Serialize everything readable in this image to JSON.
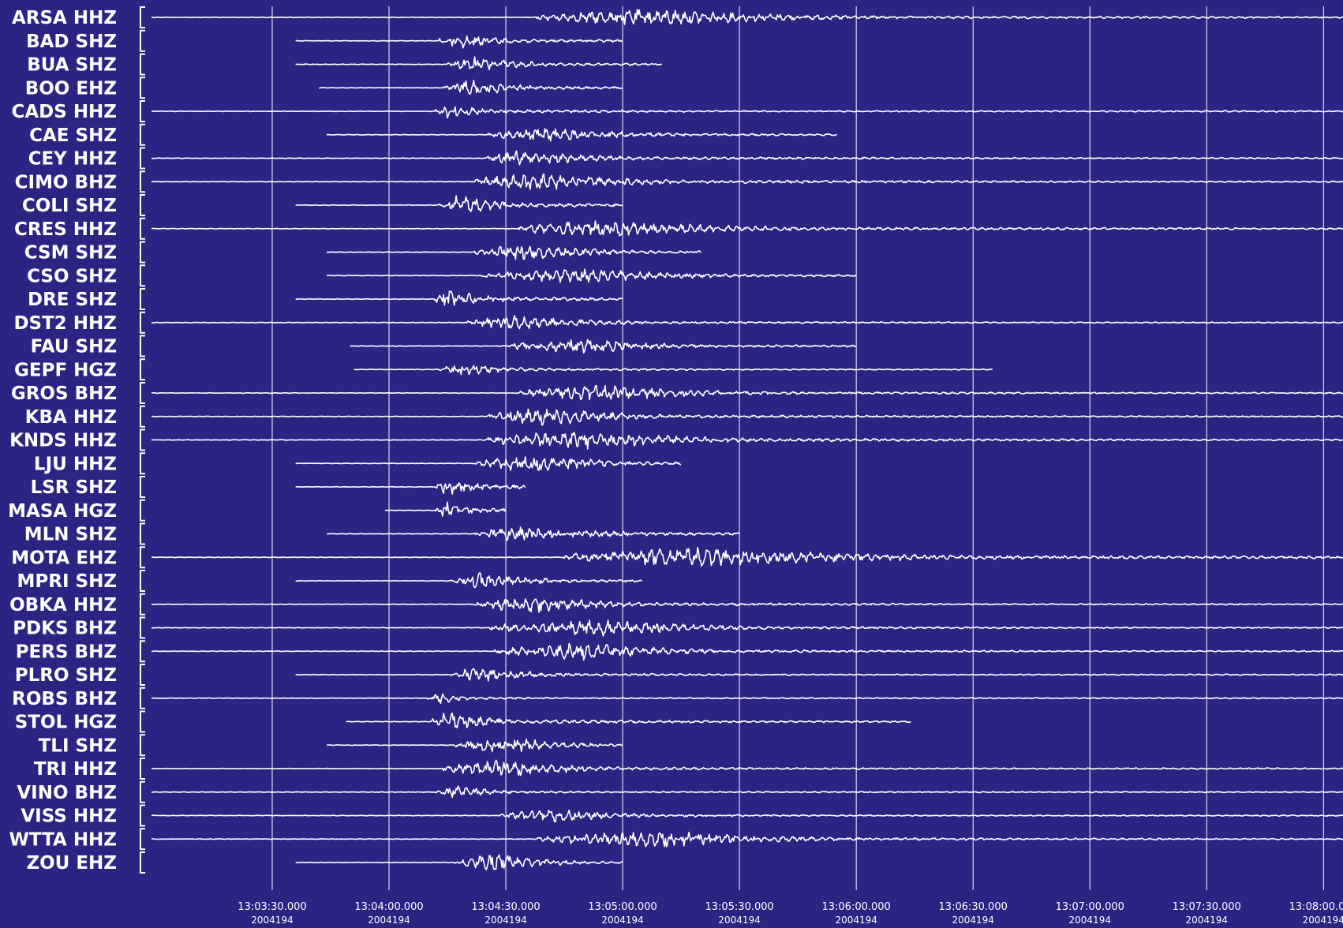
{
  "chart_data": {
    "type": "line",
    "title": "",
    "xlabel": "",
    "ylabel": "",
    "grid": true,
    "background_color": "#2a2483",
    "trace_color": "#ffffff",
    "grid_color": "#ffffff",
    "x_ticks": [
      {
        "time": "13:03:30.000",
        "date": "2004194"
      },
      {
        "time": "13:04:00.000",
        "date": "2004194"
      },
      {
        "time": "13:04:30.000",
        "date": "2004194"
      },
      {
        "time": "13:05:00.000",
        "date": "2004194"
      },
      {
        "time": "13:05:30.000",
        "date": "2004194"
      },
      {
        "time": "13:06:00.000",
        "date": "2004194"
      },
      {
        "time": "13:06:30.000",
        "date": "2004194"
      },
      {
        "time": "13:07:00.000",
        "date": "2004194"
      },
      {
        "time": "13:07:30.000",
        "date": "2004194"
      },
      {
        "time": "13:08:00.000",
        "date": "2004194"
      }
    ],
    "x_range": [
      "13:02:59",
      "13:08:05"
    ],
    "series": [
      {
        "name": "ARSA HHZ",
        "trace_start": "13:02:59",
        "trace_end": "13:08:05",
        "onset": "13:04:38",
        "peak_time": "13:05:08",
        "amplitude": 0.6,
        "duration_s": 95
      },
      {
        "name": "BAD SHZ",
        "trace_start": "13:03:36",
        "trace_end": "13:05:00",
        "onset": "13:04:13",
        "peak_time": "13:04:17",
        "amplitude": 0.6,
        "duration_s": 35
      },
      {
        "name": "BUA SHZ",
        "trace_start": "13:03:36",
        "trace_end": "13:05:10",
        "onset": "13:04:15",
        "peak_time": "13:04:22",
        "amplitude": 0.5,
        "duration_s": 40
      },
      {
        "name": "BOO EHZ",
        "trace_start": "13:03:42",
        "trace_end": "13:05:00",
        "onset": "13:04:14",
        "peak_time": "13:04:20",
        "amplitude": 0.6,
        "duration_s": 35
      },
      {
        "name": "CADS HHZ",
        "trace_start": "13:02:59",
        "trace_end": "13:08:05",
        "onset": "13:04:12",
        "peak_time": "13:04:13",
        "amplitude": 0.6,
        "duration_s": 30
      },
      {
        "name": "CAE SHZ",
        "trace_start": "13:03:44",
        "trace_end": "13:05:55",
        "onset": "13:04:25",
        "peak_time": "13:04:40",
        "amplitude": 0.45,
        "duration_s": 70
      },
      {
        "name": "CEY HHZ",
        "trace_start": "13:02:59",
        "trace_end": "13:08:05",
        "onset": "13:04:25",
        "peak_time": "13:04:32",
        "amplitude": 0.55,
        "duration_s": 60
      },
      {
        "name": "CIMO BHZ",
        "trace_start": "13:02:59",
        "trace_end": "13:08:05",
        "onset": "13:04:22",
        "peak_time": "13:04:36",
        "amplitude": 0.65,
        "duration_s": 70
      },
      {
        "name": "COLI SHZ",
        "trace_start": "13:03:36",
        "trace_end": "13:05:00",
        "onset": "13:04:13",
        "peak_time": "13:04:17",
        "amplitude": 0.7,
        "duration_s": 35
      },
      {
        "name": "CRES HHZ",
        "trace_start": "13:02:59",
        "trace_end": "13:08:05",
        "onset": "13:04:33",
        "peak_time": "13:04:55",
        "amplitude": 0.6,
        "duration_s": 90
      },
      {
        "name": "CSM SHZ",
        "trace_start": "13:03:44",
        "trace_end": "13:05:20",
        "onset": "13:04:22",
        "peak_time": "13:04:34",
        "amplitude": 0.55,
        "duration_s": 55
      },
      {
        "name": "CSO SHZ",
        "trace_start": "13:03:44",
        "trace_end": "13:06:00",
        "onset": "13:04:24",
        "peak_time": "13:04:50",
        "amplitude": 0.5,
        "duration_s": 70
      },
      {
        "name": "DRE SHZ",
        "trace_start": "13:03:36",
        "trace_end": "13:05:00",
        "onset": "13:04:11",
        "peak_time": "13:04:13",
        "amplitude": 0.75,
        "duration_s": 30
      },
      {
        "name": "DST2 HHZ",
        "trace_start": "13:02:59",
        "trace_end": "13:08:05",
        "onset": "13:04:20",
        "peak_time": "13:04:32",
        "amplitude": 0.5,
        "duration_s": 60
      },
      {
        "name": "FAU SHZ",
        "trace_start": "13:03:50",
        "trace_end": "13:06:00",
        "onset": "13:04:30",
        "peak_time": "13:04:50",
        "amplitude": 0.5,
        "duration_s": 55
      },
      {
        "name": "GEPF HGZ",
        "trace_start": "13:03:51",
        "trace_end": "13:06:35",
        "onset": "13:04:13",
        "peak_time": "13:04:17",
        "amplitude": 0.5,
        "duration_s": 35
      },
      {
        "name": "GROS BHZ",
        "trace_start": "13:02:59",
        "trace_end": "13:08:05",
        "onset": "13:04:33",
        "peak_time": "13:04:55",
        "amplitude": 0.55,
        "duration_s": 70
      },
      {
        "name": "KBA HHZ",
        "trace_start": "13:02:59",
        "trace_end": "13:08:05",
        "onset": "13:04:25",
        "peak_time": "13:04:40",
        "amplitude": 0.6,
        "duration_s": 60
      },
      {
        "name": "KNDS HHZ",
        "trace_start": "13:02:59",
        "trace_end": "13:08:05",
        "onset": "13:04:25",
        "peak_time": "13:04:48",
        "amplitude": 0.65,
        "duration_s": 80
      },
      {
        "name": "LJU HHZ",
        "trace_start": "13:03:36",
        "trace_end": "13:05:15",
        "onset": "13:04:22",
        "peak_time": "13:04:38",
        "amplitude": 0.6,
        "duration_s": 50
      },
      {
        "name": "LSR SHZ",
        "trace_start": "13:03:36",
        "trace_end": "13:04:35",
        "onset": "13:04:12",
        "peak_time": "13:04:13",
        "amplitude": 0.75,
        "duration_s": 25
      },
      {
        "name": "MASA HGZ",
        "trace_start": "13:03:59",
        "trace_end": "13:04:30",
        "onset": "13:04:12",
        "peak_time": "13:04:13",
        "amplitude": 0.75,
        "duration_s": 20
      },
      {
        "name": "MLN SHZ",
        "trace_start": "13:03:44",
        "trace_end": "13:05:30",
        "onset": "13:04:22",
        "peak_time": "13:04:34",
        "amplitude": 0.55,
        "duration_s": 60
      },
      {
        "name": "MOTA EHZ",
        "trace_start": "13:02:59",
        "trace_end": "13:08:05",
        "onset": "13:04:45",
        "peak_time": "13:05:16",
        "amplitude": 0.7,
        "duration_s": 130
      },
      {
        "name": "MPRI SHZ",
        "trace_start": "13:03:36",
        "trace_end": "13:05:05",
        "onset": "13:04:16",
        "peak_time": "13:04:24",
        "amplitude": 0.55,
        "duration_s": 40
      },
      {
        "name": "OBKA HHZ",
        "trace_start": "13:02:59",
        "trace_end": "13:08:05",
        "onset": "13:04:22",
        "peak_time": "13:04:36",
        "amplitude": 0.6,
        "duration_s": 55
      },
      {
        "name": "PDKS BHZ",
        "trace_start": "13:02:59",
        "trace_end": "13:08:05",
        "onset": "13:04:26",
        "peak_time": "13:04:55",
        "amplitude": 0.55,
        "duration_s": 70
      },
      {
        "name": "PERS BHZ",
        "trace_start": "13:02:59",
        "trace_end": "13:08:05",
        "onset": "13:04:27",
        "peak_time": "13:04:50",
        "amplitude": 0.6,
        "duration_s": 60
      },
      {
        "name": "PLRO SHZ",
        "trace_start": "13:03:36",
        "trace_end": "13:08:05",
        "onset": "13:04:16",
        "peak_time": "13:04:22",
        "amplitude": 0.5,
        "duration_s": 45
      },
      {
        "name": "ROBS BHZ",
        "trace_start": "13:02:59",
        "trace_end": "13:08:05",
        "onset": "13:04:10",
        "peak_time": "13:04:12",
        "amplitude": 0.5,
        "duration_s": 15
      },
      {
        "name": "STOL HGZ",
        "trace_start": "13:03:49",
        "trace_end": "13:06:14",
        "onset": "13:04:11",
        "peak_time": "13:04:13",
        "amplitude": 0.75,
        "duration_s": 35
      },
      {
        "name": "TLI SHZ",
        "trace_start": "13:03:44",
        "trace_end": "13:05:00",
        "onset": "13:04:17",
        "peak_time": "13:04:30",
        "amplitude": 0.55,
        "duration_s": 45
      },
      {
        "name": "TRI HHZ",
        "trace_start": "13:02:59",
        "trace_end": "13:08:05",
        "onset": "13:04:14",
        "peak_time": "13:04:30",
        "amplitude": 0.6,
        "duration_s": 50
      },
      {
        "name": "VINO BHZ",
        "trace_start": "13:02:59",
        "trace_end": "13:08:05",
        "onset": "13:04:12",
        "peak_time": "13:04:18",
        "amplitude": 0.45,
        "duration_s": 25
      },
      {
        "name": "VISS HHZ",
        "trace_start": "13:02:59",
        "trace_end": "13:08:05",
        "onset": "13:04:28",
        "peak_time": "13:04:42",
        "amplitude": 0.5,
        "duration_s": 45
      },
      {
        "name": "WTTA HHZ",
        "trace_start": "13:02:59",
        "trace_end": "13:08:05",
        "onset": "13:04:38",
        "peak_time": "13:05:10",
        "amplitude": 0.55,
        "duration_s": 80
      },
      {
        "name": "ZOU EHZ",
        "trace_start": "13:03:36",
        "trace_end": "13:05:00",
        "onset": "13:04:17",
        "peak_time": "13:04:28",
        "amplitude": 0.6,
        "duration_s": 35
      }
    ]
  }
}
